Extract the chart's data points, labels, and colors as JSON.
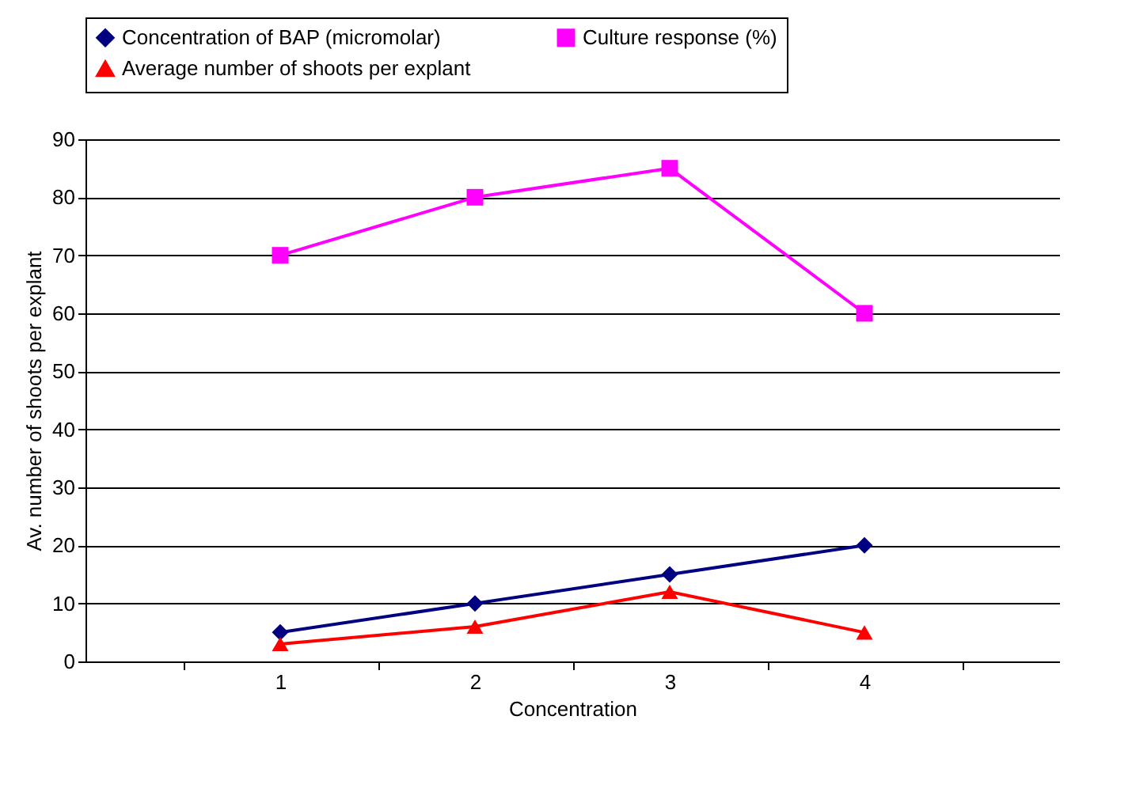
{
  "chart_data": {
    "type": "line",
    "xlabel": "Concentration",
    "ylabel": "Av. number of shoots per explant",
    "categories": [
      "1",
      "2",
      "3",
      "4"
    ],
    "series": [
      {
        "name": "Concentration of BAP (micromolar)",
        "color": "#000080",
        "marker": "diamond",
        "values": [
          5,
          10,
          15,
          20
        ]
      },
      {
        "name": "Culture response (%)",
        "color": "#ff00ff",
        "marker": "square",
        "values": [
          70,
          80,
          85,
          60
        ]
      },
      {
        "name": "Average number of shoots per explant",
        "color": "#ff0000",
        "marker": "triangle",
        "values": [
          3,
          6,
          12,
          5
        ]
      }
    ],
    "ylim": [
      0,
      90
    ],
    "yticks": [
      0,
      10,
      20,
      30,
      40,
      50,
      60,
      70,
      80,
      90
    ],
    "grid": "y",
    "legend": "top",
    "line_style": "solid"
  }
}
